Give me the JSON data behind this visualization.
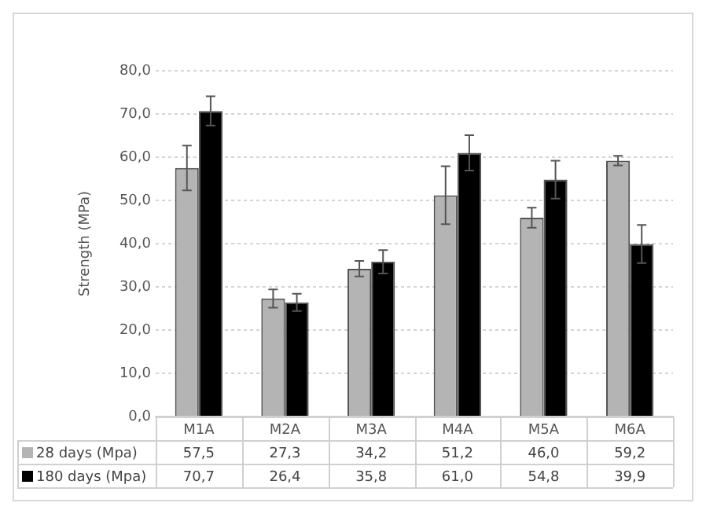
{
  "chart_data": {
    "type": "bar",
    "ylabel": "Strength (MPa)",
    "categories": [
      "M1A",
      "M2A",
      "M3A",
      "M4A",
      "M5A",
      "M6A"
    ],
    "series": [
      {
        "name": "28 days (Mpa)",
        "color": "#b4b4b4",
        "values": [
          57.5,
          27.3,
          34.2,
          51.2,
          46.0,
          59.2
        ],
        "errors": [
          5.2,
          2.1,
          1.8,
          6.7,
          2.3,
          1.1
        ],
        "value_labels": [
          "57,5",
          "27,3",
          "34,2",
          "51,2",
          "46,0",
          "59,2"
        ]
      },
      {
        "name": "180 days (Mpa)",
        "color": "#000000",
        "values": [
          70.7,
          26.4,
          35.8,
          61.0,
          54.8,
          39.9
        ],
        "errors": [
          3.4,
          2.0,
          2.7,
          4.1,
          4.4,
          4.4
        ],
        "value_labels": [
          "70,7",
          "26,4",
          "35,8",
          "61,0",
          "54,8",
          "39,9"
        ]
      }
    ],
    "ylim": [
      0,
      80
    ],
    "yticks": [
      {
        "value": 0,
        "label": "0,0"
      },
      {
        "value": 10,
        "label": "10,0"
      },
      {
        "value": 20,
        "label": "20,0"
      },
      {
        "value": 30,
        "label": "30,0"
      },
      {
        "value": 40,
        "label": "40,0"
      },
      {
        "value": 50,
        "label": "50,0"
      },
      {
        "value": 60,
        "label": "60,0"
      },
      {
        "value": 70,
        "label": "70,0"
      },
      {
        "value": 80,
        "label": "80,0"
      }
    ],
    "grid": "y",
    "legend": "bottom"
  }
}
